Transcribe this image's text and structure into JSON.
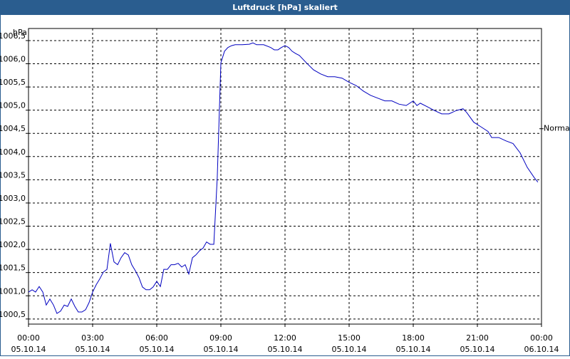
{
  "chart_data": {
    "type": "line",
    "title": "Luftdruck [hPa] skaliert",
    "y_unit": "hPa",
    "annotation": "Normal",
    "annotation_value": 1004.6,
    "grid": true,
    "xlim": [
      0,
      24
    ],
    "xticks": [
      {
        "value": 0,
        "label": "00:00",
        "date": "05.10.14"
      },
      {
        "value": 3,
        "label": "03:00",
        "date": "05.10.14"
      },
      {
        "value": 6,
        "label": "06:00",
        "date": "05.10.14"
      },
      {
        "value": 9,
        "label": "09:00",
        "date": "05.10.14"
      },
      {
        "value": 12,
        "label": "12:00",
        "date": "05.10.14"
      },
      {
        "value": 15,
        "label": "15:00",
        "date": "05.10.14"
      },
      {
        "value": 18,
        "label": "18:00",
        "date": "05.10.14"
      },
      {
        "value": 21,
        "label": "21:00",
        "date": "05.10.14"
      },
      {
        "value": 24,
        "label": "00:00",
        "date": "06.10.14"
      }
    ],
    "ylim": [
      1000.39,
      1006.76
    ],
    "yticks": [
      {
        "value": 1000.5,
        "label": "1000,5"
      },
      {
        "value": 1001.0,
        "label": "1001,0"
      },
      {
        "value": 1001.5,
        "label": "1001,5"
      },
      {
        "value": 1002.0,
        "label": "1002,0"
      },
      {
        "value": 1002.5,
        "label": "1002,5"
      },
      {
        "value": 1003.0,
        "label": "1003,0"
      },
      {
        "value": 1003.5,
        "label": "1003,5"
      },
      {
        "value": 1004.0,
        "label": "1004,0"
      },
      {
        "value": 1004.5,
        "label": "1004,5"
      },
      {
        "value": 1005.0,
        "label": "1005,0"
      },
      {
        "value": 1005.5,
        "label": "1005,5"
      },
      {
        "value": 1006.0,
        "label": "1006,0"
      },
      {
        "value": 1006.5,
        "label": "1006,5"
      }
    ],
    "x": [
      0,
      0.17,
      0.33,
      0.5,
      0.67,
      0.83,
      1,
      1.17,
      1.33,
      1.5,
      1.67,
      1.83,
      2,
      2.17,
      2.33,
      2.5,
      2.67,
      2.83,
      3,
      3.17,
      3.33,
      3.5,
      3.67,
      3.83,
      4,
      4.17,
      4.33,
      4.5,
      4.67,
      4.83,
      5,
      5.17,
      5.33,
      5.5,
      5.67,
      5.83,
      6,
      6.17,
      6.33,
      6.5,
      6.67,
      6.83,
      7,
      7.17,
      7.33,
      7.5,
      7.67,
      7.83,
      8,
      8.17,
      8.33,
      8.5,
      8.67,
      8.83,
      9,
      9.17,
      9.33,
      9.5,
      9.67,
      10,
      10.33,
      10.5,
      10.67,
      11,
      11.33,
      11.5,
      11.67,
      11.83,
      12,
      12.17,
      12.33,
      12.5,
      12.67,
      13,
      13.33,
      13.67,
      14,
      14.33,
      14.67,
      15,
      15.33,
      15.67,
      16,
      16.33,
      16.67,
      17,
      17.33,
      17.67,
      18,
      18.17,
      18.33,
      18.67,
      19,
      19.33,
      19.67,
      20,
      20.33,
      20.5,
      20.83,
      21.17,
      21.5,
      21.67,
      22,
      22.33,
      22.67,
      23,
      23.33,
      23.67,
      23.83
    ],
    "series": [
      {
        "color": "#0000c0",
        "values": [
          1001.08,
          1001.13,
          1001.08,
          1001.2,
          1001.08,
          1000.8,
          1000.93,
          1000.8,
          1000.62,
          1000.67,
          1000.8,
          1000.77,
          1000.93,
          1000.77,
          1000.65,
          1000.65,
          1000.7,
          1000.85,
          1001.08,
          1001.24,
          1001.36,
          1001.51,
          1001.57,
          1002.13,
          1001.73,
          1001.67,
          1001.82,
          1001.93,
          1001.88,
          1001.67,
          1001.54,
          1001.39,
          1001.19,
          1001.13,
          1001.13,
          1001.19,
          1001.31,
          1001.2,
          1001.57,
          1001.57,
          1001.67,
          1001.67,
          1001.7,
          1001.62,
          1001.67,
          1001.47,
          1001.82,
          1001.88,
          1001.97,
          1002.03,
          1002.16,
          1002.11,
          1002.11,
          1003.54,
          1006.02,
          1006.27,
          1006.35,
          1006.39,
          1006.41,
          1006.41,
          1006.42,
          1006.45,
          1006.41,
          1006.41,
          1006.35,
          1006.3,
          1006.3,
          1006.35,
          1006.39,
          1006.35,
          1006.27,
          1006.22,
          1006.18,
          1006.02,
          1005.87,
          1005.78,
          1005.72,
          1005.72,
          1005.69,
          1005.6,
          1005.53,
          1005.41,
          1005.32,
          1005.26,
          1005.2,
          1005.2,
          1005.13,
          1005.1,
          1005.2,
          1005.1,
          1005.15,
          1005.07,
          1004.99,
          1004.92,
          1004.92,
          1004.99,
          1005.03,
          1004.95,
          1004.74,
          1004.64,
          1004.54,
          1004.41,
          1004.41,
          1004.34,
          1004.28,
          1004.08,
          1003.77,
          1003.54,
          1003.45
        ]
      }
    ]
  }
}
